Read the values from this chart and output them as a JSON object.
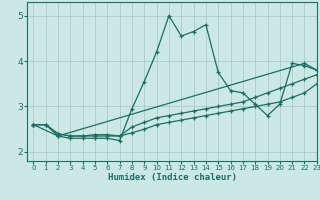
{
  "xlabel": "Humidex (Indice chaleur)",
  "xlim": [
    -0.5,
    23
  ],
  "ylim": [
    1.8,
    5.3
  ],
  "xticks": [
    0,
    1,
    2,
    3,
    4,
    5,
    6,
    7,
    8,
    9,
    10,
    11,
    12,
    13,
    14,
    15,
    16,
    17,
    18,
    19,
    20,
    21,
    22,
    23
  ],
  "yticks": [
    2,
    3,
    4,
    5
  ],
  "bg_color": "#cce8e4",
  "line_color": "#1a6e62",
  "grid_color": "#aaccc8",
  "line1_x": [
    0,
    1,
    2,
    3,
    4,
    5,
    6,
    7,
    8,
    9,
    10,
    11,
    12,
    13,
    14,
    15,
    16,
    17,
    18,
    19,
    20,
    21,
    22,
    23
  ],
  "line1_y": [
    2.6,
    2.6,
    2.35,
    2.3,
    2.3,
    2.3,
    2.3,
    2.25,
    2.95,
    3.55,
    4.2,
    5.0,
    4.55,
    4.65,
    4.8,
    3.75,
    3.35,
    3.3,
    3.05,
    2.8,
    3.05,
    3.95,
    3.9,
    3.8
  ],
  "line2_x": [
    0,
    1,
    2,
    3,
    4,
    5,
    6,
    7,
    8,
    9,
    10,
    11,
    12,
    13,
    14,
    15,
    16,
    17,
    18,
    19,
    20,
    21,
    22,
    23
  ],
  "line2_y": [
    2.6,
    2.6,
    2.4,
    2.35,
    2.35,
    2.35,
    2.35,
    2.35,
    2.55,
    2.65,
    2.75,
    2.8,
    2.85,
    2.9,
    2.95,
    3.0,
    3.05,
    3.1,
    3.2,
    3.3,
    3.4,
    3.5,
    3.6,
    3.7
  ],
  "line3_x": [
    0,
    1,
    2,
    3,
    4,
    5,
    6,
    7,
    8,
    9,
    10,
    11,
    12,
    13,
    14,
    15,
    16,
    17,
    18,
    19,
    20,
    21,
    22,
    23
  ],
  "line3_y": [
    2.6,
    2.6,
    2.4,
    2.35,
    2.35,
    2.38,
    2.38,
    2.35,
    2.42,
    2.5,
    2.6,
    2.65,
    2.7,
    2.75,
    2.8,
    2.85,
    2.9,
    2.95,
    3.0,
    3.05,
    3.1,
    3.2,
    3.3,
    3.5
  ],
  "line4_x": [
    0,
    2,
    22,
    23
  ],
  "line4_y": [
    2.6,
    2.35,
    3.95,
    3.8
  ]
}
